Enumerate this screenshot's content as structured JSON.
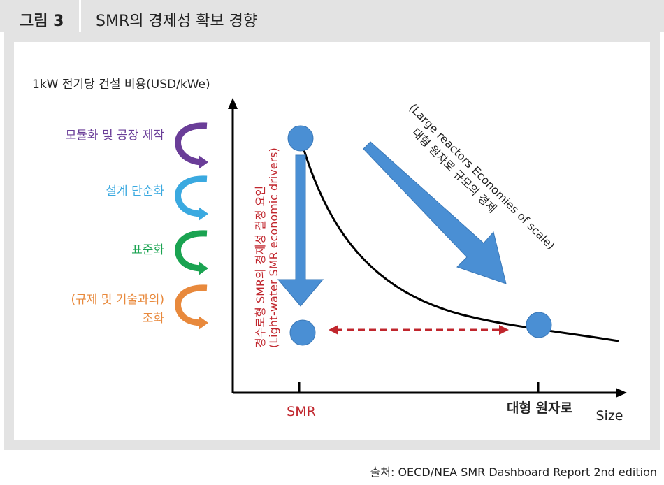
{
  "figure": {
    "number": "그림 3",
    "title": "SMR의 경제성 확보 경향"
  },
  "diagram": {
    "y_axis_label": "1kW 전기당 건설 비용(USD/kWe)",
    "x_axis_label": "Size",
    "x_ticks": [
      "SMR",
      "대형 원자로"
    ],
    "drivers": [
      {
        "label": "모듈화 및 공장 제작",
        "color": "#6a3d98",
        "icon": "curved-arrow-icon"
      },
      {
        "label": "설계 단순화",
        "color": "#3aa9e0",
        "icon": "curved-arrow-icon"
      },
      {
        "label": "표준화",
        "color": "#1aa351",
        "icon": "curved-arrow-icon"
      },
      {
        "label": "(규제 및 기술과의)",
        "label2": "조화",
        "color": "#e8893c",
        "icon": "curved-arrow-icon"
      }
    ],
    "smr_annotation": {
      "line1": "경수로형 SMR의 경제성 결정 요인",
      "line2": "(Light-water SMR economic drivers)",
      "color": "#c0262d"
    },
    "large_annotation": {
      "line1": "대형 원자로 규모의 경제",
      "line2": "(Large reactors Economies of scale)"
    },
    "colors": {
      "point": "#4a8fd4",
      "arrow": "#4a8fd4",
      "dashed": "#c0262d",
      "curve": "#000000"
    }
  },
  "source": "출처: OECD/NEA SMR Dashboard Report 2nd edition"
}
